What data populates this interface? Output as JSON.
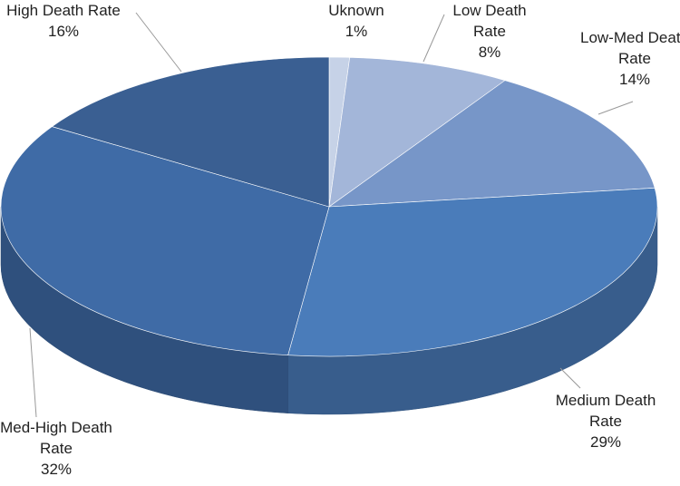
{
  "chart_data": {
    "type": "pie",
    "categories": [
      "Uknown",
      "Low Death Rate",
      "Low-Med Death Rate",
      "Medium Death Rate",
      "Med-High Death Rate",
      "High Death Rate"
    ],
    "values": [
      1,
      8,
      14,
      29,
      32,
      16
    ],
    "value_labels": [
      "1%",
      "8%",
      "14%",
      "29%",
      "32%",
      "16%"
    ],
    "colors": [
      "#c6d2e7",
      "#a3b6d9",
      "#7796c8",
      "#4a7cba",
      "#3f6ba6",
      "#3a5f92"
    ]
  }
}
